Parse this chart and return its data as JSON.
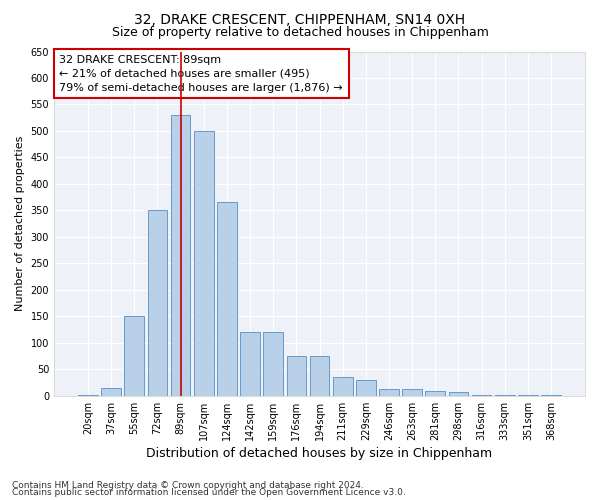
{
  "title": "32, DRAKE CRESCENT, CHIPPENHAM, SN14 0XH",
  "subtitle": "Size of property relative to detached houses in Chippenham",
  "xlabel": "Distribution of detached houses by size in Chippenham",
  "ylabel": "Number of detached properties",
  "categories": [
    "20sqm",
    "37sqm",
    "55sqm",
    "72sqm",
    "89sqm",
    "107sqm",
    "124sqm",
    "142sqm",
    "159sqm",
    "176sqm",
    "194sqm",
    "211sqm",
    "229sqm",
    "246sqm",
    "263sqm",
    "281sqm",
    "298sqm",
    "316sqm",
    "333sqm",
    "351sqm",
    "368sqm"
  ],
  "values": [
    2,
    15,
    150,
    350,
    530,
    500,
    365,
    120,
    120,
    75,
    75,
    35,
    30,
    12,
    12,
    10,
    8,
    1,
    1,
    1,
    1
  ],
  "bar_color": "#b8d0e8",
  "bar_edge_color": "#6699cc",
  "highlight_index": 4,
  "highlight_line_color": "#cc0000",
  "annotation_text": "32 DRAKE CRESCENT: 89sqm\n← 21% of detached houses are smaller (495)\n79% of semi-detached houses are larger (1,876) →",
  "annotation_box_color": "#cc0000",
  "ylim": [
    0,
    650
  ],
  "yticks": [
    0,
    50,
    100,
    150,
    200,
    250,
    300,
    350,
    400,
    450,
    500,
    550,
    600,
    650
  ],
  "background_color": "#ffffff",
  "plot_bg_color": "#eef2f8",
  "footer_line1": "Contains HM Land Registry data © Crown copyright and database right 2024.",
  "footer_line2": "Contains public sector information licensed under the Open Government Licence v3.0.",
  "title_fontsize": 10,
  "subtitle_fontsize": 9,
  "xlabel_fontsize": 9,
  "ylabel_fontsize": 8,
  "tick_fontsize": 7,
  "footer_fontsize": 6.5,
  "annotation_fontsize": 8
}
